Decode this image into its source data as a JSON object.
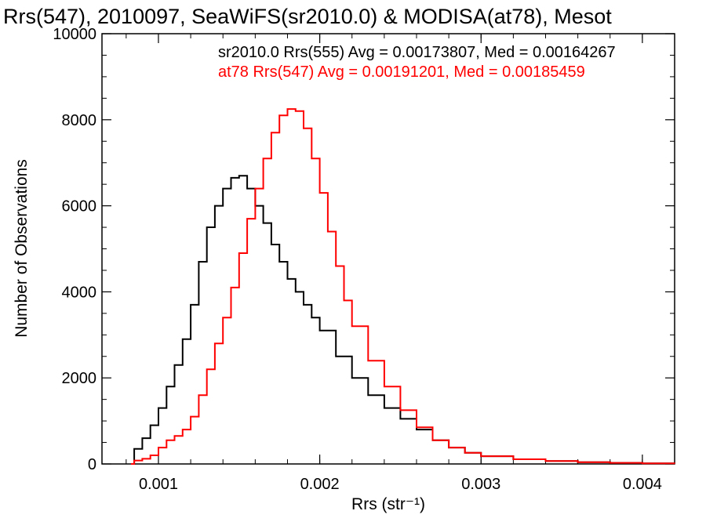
{
  "chart_data": {
    "type": "line",
    "title": "Rrs(547), 2010097, SeaWiFS(sr2010.0) & MODISA(at78), Mesot",
    "xlabel": "Rrs (str⁻¹)",
    "ylabel": "Number of Observations",
    "xlim": [
      0.00065,
      0.0042
    ],
    "ylim": [
      0,
      10000
    ],
    "x_ticks": [
      0.001,
      0.002,
      0.003,
      0.004
    ],
    "x_tick_labels": [
      "0.001",
      "0.002",
      "0.003",
      "0.004"
    ],
    "y_ticks": [
      0,
      2000,
      4000,
      6000,
      8000,
      10000
    ],
    "y_tick_labels": [
      "0",
      "2000",
      "4000",
      "6000",
      "8000",
      "10000"
    ],
    "grid": false,
    "legend_position": "top-right",
    "series": [
      {
        "name": "sr2010.0 Rrs(555) Avg = 0.00173807, Med = 0.00164267",
        "color": "#000000",
        "x": [
          0.00083,
          0.00085,
          0.0009,
          0.00095,
          0.001,
          0.00105,
          0.0011,
          0.00115,
          0.0012,
          0.00125,
          0.0013,
          0.00135,
          0.0014,
          0.00145,
          0.0015,
          0.00155,
          0.0016,
          0.00165,
          0.0017,
          0.00175,
          0.0018,
          0.00185,
          0.0019,
          0.00195,
          0.002,
          0.0021,
          0.0022,
          0.0023,
          0.0024,
          0.0025,
          0.0026,
          0.0027,
          0.0028,
          0.0029,
          0.003,
          0.0032,
          0.0034,
          0.0036,
          0.0038,
          0.004,
          0.0042
        ],
        "y": [
          0,
          350,
          600,
          900,
          1300,
          1800,
          2300,
          2900,
          3700,
          4700,
          5500,
          6000,
          6400,
          6650,
          6700,
          6400,
          6000,
          5600,
          5100,
          4700,
          4300,
          4000,
          3700,
          3400,
          3100,
          2500,
          2000,
          1600,
          1300,
          1050,
          800,
          550,
          380,
          260,
          180,
          110,
          70,
          40,
          25,
          15,
          10
        ]
      },
      {
        "name": "at78 Rrs(547) Avg = 0.00191201, Med = 0.00185459",
        "color": "#ff0000",
        "x": [
          0.00083,
          0.00085,
          0.0009,
          0.00095,
          0.001,
          0.00105,
          0.0011,
          0.00115,
          0.0012,
          0.00125,
          0.0013,
          0.00135,
          0.0014,
          0.00145,
          0.0015,
          0.00155,
          0.0016,
          0.00165,
          0.0017,
          0.00175,
          0.0018,
          0.00185,
          0.0019,
          0.00195,
          0.002,
          0.00205,
          0.0021,
          0.00215,
          0.0022,
          0.0023,
          0.0024,
          0.0025,
          0.0026,
          0.0027,
          0.0028,
          0.0029,
          0.003,
          0.0032,
          0.0034,
          0.0036,
          0.0038,
          0.004,
          0.0042
        ],
        "y": [
          0,
          80,
          120,
          200,
          380,
          550,
          650,
          800,
          1100,
          1600,
          2200,
          2800,
          3400,
          4100,
          4900,
          5700,
          6400,
          7100,
          7700,
          8100,
          8250,
          8200,
          7800,
          7100,
          6300,
          5400,
          4600,
          3800,
          3200,
          2400,
          1800,
          1250,
          850,
          550,
          380,
          260,
          180,
          110,
          70,
          40,
          25,
          15,
          10
        ]
      }
    ]
  }
}
